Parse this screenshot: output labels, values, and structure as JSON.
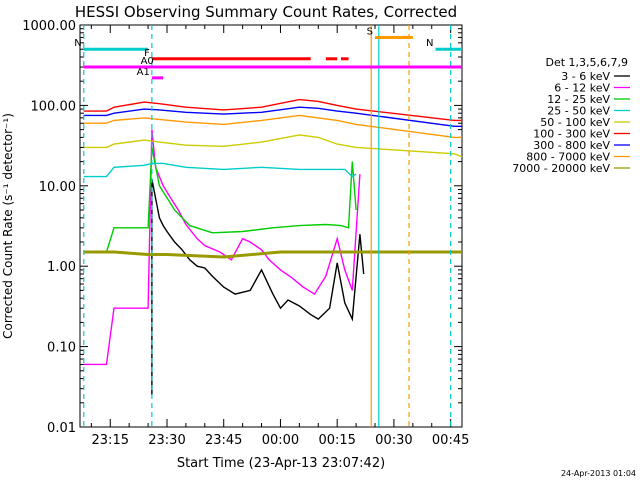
{
  "title": "HESSI Observing Summary Count Rates, Corrected",
  "footer_date": "24-Apr-2013 01:04",
  "chart_data": {
    "type": "line",
    "title": "HESSI Observing Summary Count Rates, Corrected",
    "xlabel": "Start Time (23-Apr-13 23:07:42)",
    "ylabel": "Corrected Count Rate (s⁻¹ detector⁻¹)",
    "y_scale": "log",
    "ylim": [
      0.01,
      1000
    ],
    "xlim": [
      "23:07:42",
      "00:47"
    ],
    "x_ticks": [
      "23:15",
      "23:30",
      "23:45",
      "00:00",
      "00:15",
      "00:30",
      "00:45"
    ],
    "y_ticks": [
      "0.01",
      "0.10",
      "1.00",
      "10.00",
      "100.00",
      "1000.00"
    ],
    "legend_title": "Det 1,3,5,6,7,9",
    "legend_position": "right",
    "series": [
      {
        "name": "3 - 6 keV",
        "color": "#000000",
        "x": [
          "23:26",
          "23:26",
          "23:27",
          "23:28",
          "23:29",
          "23:30",
          "23:32",
          "23:34",
          "23:36",
          "23:38",
          "23:40",
          "23:42",
          "23:45",
          "23:48",
          "23:52",
          "23:55",
          "23:58",
          "00:00",
          "00:02",
          "00:05",
          "00:08",
          "00:10",
          "00:13",
          "00:15",
          "00:17",
          "00:19",
          "00:21",
          "00:22"
        ],
        "y": [
          0.025,
          12,
          7,
          4,
          3.2,
          2.7,
          2.0,
          1.6,
          1.2,
          1.0,
          0.95,
          0.75,
          0.55,
          0.45,
          0.5,
          0.9,
          0.45,
          0.3,
          0.38,
          0.32,
          0.25,
          0.22,
          0.3,
          1.1,
          0.35,
          0.22,
          2.5,
          0.8
        ]
      },
      {
        "name": "6 - 12 keV",
        "color": "#ff00ff",
        "x": [
          "23:08",
          "23:14",
          "23:16",
          "23:20",
          "23:25",
          "23:26",
          "23:27",
          "23:29",
          "23:31",
          "23:33",
          "23:35",
          "23:38",
          "23:40",
          "23:44",
          "23:47",
          "23:50",
          "23:52",
          "23:55",
          "23:57",
          "00:00",
          "00:03",
          "00:06",
          "00:09",
          "00:12",
          "00:15",
          "00:17",
          "00:19",
          "00:21"
        ],
        "y": [
          0.06,
          0.06,
          0.3,
          0.3,
          0.3,
          50,
          17,
          10,
          7,
          5,
          3.3,
          2.2,
          1.8,
          1.5,
          1.2,
          2.2,
          2.0,
          1.6,
          1.2,
          0.9,
          0.72,
          0.55,
          0.45,
          0.75,
          2.2,
          0.9,
          0.5,
          14
        ]
      },
      {
        "name": "12 - 25 keV",
        "color": "#00cc00",
        "x": [
          "23:08",
          "23:14",
          "23:16",
          "23:25",
          "23:26",
          "23:28",
          "23:32",
          "23:36",
          "23:42",
          "23:50",
          "23:58",
          "00:05",
          "00:12",
          "00:16",
          "00:18",
          "00:19",
          "00:20"
        ],
        "y": [
          1.5,
          1.5,
          3,
          3,
          30,
          10,
          5,
          3.2,
          2.6,
          2.7,
          3,
          3.2,
          3.3,
          3.2,
          3.0,
          20,
          5
        ]
      },
      {
        "name": "25 - 50 keV",
        "color": "#00cccc",
        "x": [
          "23:08",
          "23:14",
          "23:16",
          "23:24",
          "23:26",
          "23:29",
          "23:35",
          "23:45",
          "23:55",
          "00:05",
          "00:12",
          "00:17",
          "00:19",
          "00:20"
        ],
        "y": [
          13,
          13,
          17,
          18,
          19,
          19,
          17,
          16,
          17,
          16,
          16,
          16,
          13,
          14
        ]
      },
      {
        "name": "50 - 100 keV",
        "color": "#cccc00",
        "x": [
          "23:08",
          "23:14",
          "23:16",
          "23:24",
          "23:28",
          "23:35",
          "23:45",
          "23:55",
          "00:05",
          "00:10",
          "00:15",
          "00:20",
          "00:46",
          "00:48"
        ],
        "y": [
          30,
          30,
          33,
          37,
          35,
          32,
          31,
          35,
          43,
          40,
          33,
          30,
          25,
          23
        ]
      },
      {
        "name": "100 - 300 keV",
        "color": "#ff0000",
        "x": [
          "23:08",
          "23:14",
          "23:16",
          "23:24",
          "23:28",
          "23:35",
          "23:45",
          "23:55",
          "00:05",
          "00:10",
          "00:15",
          "00:20",
          "00:46",
          "00:48"
        ],
        "y": [
          85,
          85,
          95,
          110,
          105,
          95,
          88,
          95,
          118,
          112,
          100,
          90,
          65,
          65
        ]
      },
      {
        "name": "300 - 800 keV",
        "color": "#0000ff",
        "x": [
          "23:08",
          "23:14",
          "23:16",
          "23:24",
          "23:28",
          "23:35",
          "23:45",
          "23:55",
          "00:05",
          "00:10",
          "00:15",
          "00:20",
          "00:46",
          "00:48"
        ],
        "y": [
          75,
          75,
          80,
          90,
          88,
          82,
          78,
          82,
          95,
          92,
          85,
          80,
          55,
          55
        ]
      },
      {
        "name": "800 - 7000 keV",
        "color": "#ff9900",
        "x": [
          "23:08",
          "23:14",
          "23:16",
          "23:24",
          "23:28",
          "23:35",
          "23:45",
          "23:55",
          "00:05",
          "00:10",
          "00:15",
          "00:20",
          "00:46",
          "00:48"
        ],
        "y": [
          60,
          60,
          65,
          70,
          67,
          62,
          58,
          65,
          75,
          70,
          65,
          58,
          40,
          40
        ]
      },
      {
        "name": "7000 - 20000 keV",
        "color": "#999900",
        "x": [
          "23:08",
          "23:14",
          "23:16",
          "23:25",
          "23:30",
          "23:45",
          "00:00",
          "00:15",
          "00:20",
          "00:46",
          "00:48"
        ],
        "y": [
          1.5,
          1.5,
          1.5,
          1.4,
          1.4,
          1.3,
          1.5,
          1.5,
          1.5,
          1.5,
          1.5
        ]
      }
    ],
    "annotations": [
      {
        "label": "N",
        "color": "#00cccc",
        "x": [
          "23:08",
          "23:25"
        ],
        "y": 500
      },
      {
        "label": "N",
        "color": "#00cccc",
        "x": [
          "00:41",
          "00:48"
        ],
        "y": 500
      },
      {
        "label": "F",
        "color": "#ff0000",
        "x": [
          "23:26",
          "00:08"
        ],
        "y": 380
      },
      {
        "label": "",
        "color": "#ff0000",
        "x": [
          "00:12",
          "00:15"
        ],
        "y": 380
      },
      {
        "label": "",
        "color": "#ff0000",
        "x": [
          "00:16",
          "00:18"
        ],
        "y": 380
      },
      {
        "label": "A1",
        "color": "#ff00ff",
        "x": [
          "23:26",
          "23:29"
        ],
        "y": 220
      },
      {
        "label": "A0",
        "color": "#ff00ff",
        "x": [
          "23:08",
          "00:48"
        ],
        "y": 300
      },
      {
        "label": "S",
        "color": "#ff9900",
        "x": [
          "00:25",
          "00:35"
        ],
        "y": 700
      }
    ],
    "vlines": [
      {
        "x": "23:08",
        "color": "#00cccc",
        "dash": true
      },
      {
        "x": "23:26",
        "color": "#00cccc",
        "dash": true
      },
      {
        "x": "00:24",
        "color": "#ff9900",
        "dash": false
      },
      {
        "x": "00:26",
        "color": "#00cccc",
        "dash": false
      },
      {
        "x": "00:34",
        "color": "#ff9900",
        "dash": true
      },
      {
        "x": "00:45",
        "color": "#00cccc",
        "dash": true
      }
    ]
  }
}
